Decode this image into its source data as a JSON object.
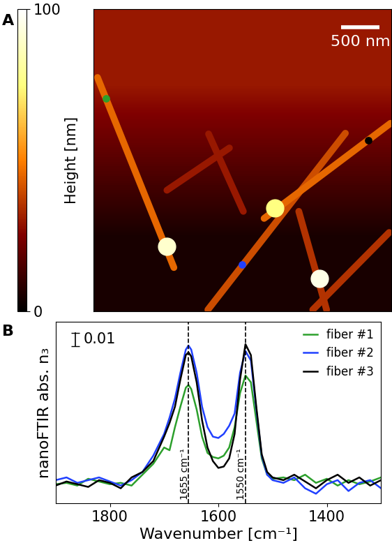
{
  "chart_data": [
    {
      "type": "image",
      "panel": "A",
      "xlim": [
        0,
        3900
      ],
      "ylim": [
        3900,
        0
      ],
      "xticks": [],
      "yticks": [],
      "tick_labels": false,
      "colorbar": {
        "label": "Height [nm]",
        "range": [
          0,
          100
        ],
        "ticks": [
          0,
          100
        ]
      },
      "scale_bar": {
        "label": "500 nm",
        "length": 500
      },
      "background": [
        30,
        5
      ],
      "fibers": [
        {
          "x": [
            55,
            1055
          ],
          "y": [
            880,
            3335
          ],
          "height": 45
        },
        {
          "x": [
            1500,
            3300
          ],
          "y": [
            3880,
            1600
          ],
          "height": 40
        },
        {
          "x": [
            2236,
            3890
          ],
          "y": [
            2700,
            1472
          ],
          "height": 45
        },
        {
          "x": [
            964,
            1782
          ],
          "y": [
            2336,
            1790
          ],
          "height": 30
        },
        {
          "x": [
            2873,
            3873
          ],
          "y": [
            3880,
            2882
          ],
          "height": 35
        },
        {
          "x": [
            2690,
            3054
          ],
          "y": [
            2609,
            3880
          ],
          "height": 35
        },
        {
          "x": [
            1509,
            1964
          ],
          "y": [
            1609,
            2609
          ],
          "height": 30
        }
      ],
      "blobs": [
        {
          "x": 964,
          "y": 3063,
          "height": 90
        },
        {
          "x": 2963,
          "y": 3472,
          "height": 95
        },
        {
          "x": 2377,
          "y": 2564,
          "height": 75
        }
      ],
      "points": [
        {
          "x": 164,
          "y": 1150,
          "color": "#2ca02c"
        },
        {
          "x": 1945,
          "y": 3300,
          "color": "#2040ff"
        },
        {
          "x": 3600,
          "y": 1687,
          "color": "#000000"
        }
      ]
    },
    {
      "type": "line",
      "panel": "B",
      "x_label": "Wavenumber [cm⁻¹]",
      "y_label": "nanoFTIR abs. n₃",
      "xlim": [
        1900,
        1300
      ],
      "xticks": [
        1800,
        1600,
        1400
      ],
      "ylim": [
        -0.011,
        0.1225
      ],
      "yticks": [],
      "tick_labels": "x",
      "legend": "upper right",
      "scale_bar": {
        "label": "0.01",
        "value": 0.01
      },
      "annotations": [
        {
          "x": 1655,
          "label": "1655 cm⁻¹"
        },
        {
          "x": 1550,
          "label": "1550 cm⁻¹"
        }
      ],
      "x": [
        1900,
        1880,
        1860,
        1840,
        1820,
        1800,
        1780,
        1760,
        1740,
        1720,
        1700,
        1690,
        1680,
        1670,
        1660,
        1655,
        1650,
        1640,
        1630,
        1620,
        1610,
        1600,
        1590,
        1580,
        1570,
        1560,
        1550,
        1540,
        1530,
        1520,
        1510,
        1500,
        1480,
        1460,
        1440,
        1420,
        1400,
        1380,
        1360,
        1340,
        1320,
        1300
      ],
      "series": [
        {
          "name": "fiber #1",
          "color": "#2ca02c",
          "values": [
            0.003,
            0.004,
            0.002,
            0.007,
            0.005,
            0.003,
            0.004,
            0.002,
            0.01,
            0.018,
            0.03,
            0.028,
            0.045,
            0.06,
            0.074,
            0.076,
            0.073,
            0.058,
            0.038,
            0.026,
            0.023,
            0.022,
            0.024,
            0.03,
            0.045,
            0.07,
            0.083,
            0.078,
            0.05,
            0.022,
            0.01,
            0.007,
            0.008,
            0.006,
            0.01,
            0.004,
            0.007,
            0.002,
            0.006,
            0.003,
            0.005,
            0.008
          ]
        },
        {
          "name": "fiber #2",
          "color": "#2040ff",
          "values": [
            0.006,
            0.008,
            0.004,
            0.006,
            0.008,
            0.005,
            0.002,
            0.006,
            0.012,
            0.024,
            0.04,
            0.052,
            0.066,
            0.085,
            0.102,
            0.105,
            0.102,
            0.085,
            0.06,
            0.045,
            0.038,
            0.037,
            0.04,
            0.046,
            0.055,
            0.085,
            0.101,
            0.094,
            0.058,
            0.024,
            0.01,
            0.006,
            0.004,
            0.008,
            0.0,
            -0.004,
            0.003,
            0.006,
            -0.002,
            0.004,
            0.006,
            0.0
          ]
        },
        {
          "name": "fiber #3",
          "color": "#000000",
          "values": [
            0.002,
            0.005,
            0.003,
            0.001,
            0.006,
            0.004,
            0.0,
            0.008,
            0.012,
            0.02,
            0.038,
            0.048,
            0.06,
            0.08,
            0.098,
            0.1,
            0.097,
            0.078,
            0.05,
            0.03,
            0.02,
            0.015,
            0.016,
            0.022,
            0.04,
            0.08,
            0.106,
            0.098,
            0.06,
            0.025,
            0.012,
            0.008,
            0.006,
            0.01,
            0.005,
            0.0,
            0.006,
            0.01,
            0.004,
            0.008,
            0.002,
            0.006
          ]
        }
      ]
    }
  ]
}
